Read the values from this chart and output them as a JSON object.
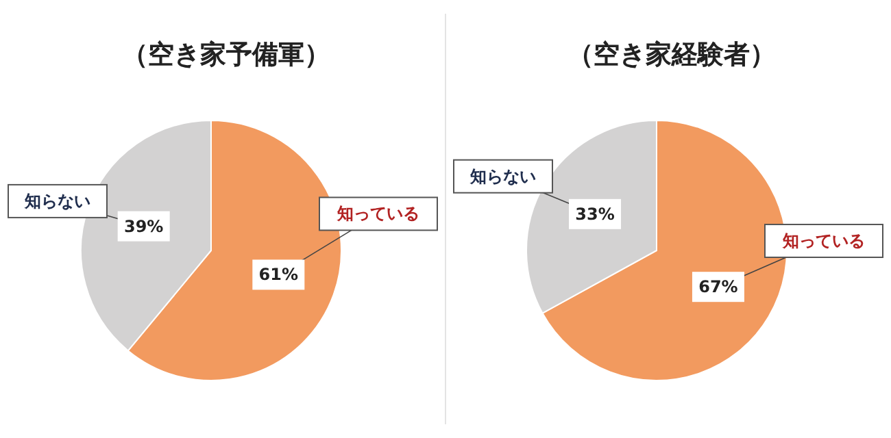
{
  "chart_data": [
    {
      "type": "pie",
      "title": "（空き家予備軍）",
      "categories": [
        "知っている",
        "知らない"
      ],
      "values": [
        61,
        39
      ],
      "colors": [
        "#f29a5f",
        "#d3d2d2"
      ],
      "value_labels": [
        "61%",
        "39%"
      ]
    },
    {
      "type": "pie",
      "title": "（空き家経験者）",
      "categories": [
        "知っている",
        "知らない"
      ],
      "values": [
        67,
        33
      ],
      "colors": [
        "#f29a5f",
        "#d3d2d2"
      ],
      "value_labels": [
        "67%",
        "33%"
      ]
    }
  ]
}
